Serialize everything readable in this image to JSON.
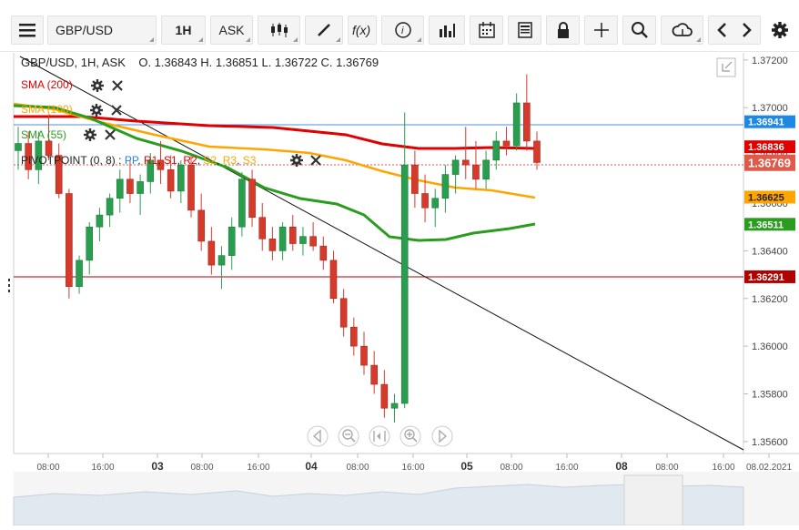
{
  "toolbar": {
    "symbol": "GBP/USD",
    "timeframe": "1H",
    "price_type": "ASK",
    "icons": [
      "menu-icon",
      "candles-icon",
      "draw-icon",
      "fx-icon",
      "info-icon",
      "bars-icon",
      "calendar-icon",
      "document-icon",
      "lock-icon",
      "crosshair-icon",
      "zoom-icon",
      "cloud-icon",
      "chevron-left-icon",
      "chevron-right-icon",
      "gear-icon"
    ]
  },
  "header": {
    "title": "GBP/USD, 1H, ASK",
    "ohlc": "O. 1.36843 H. 1.36851 L. 1.36722 C. 1.36769"
  },
  "indicators": [
    {
      "label": "SMA (200)",
      "color": "#e00000"
    },
    {
      "label": "SMA (100)",
      "color": "#ffa500"
    },
    {
      "label": "SMA (55)",
      "color": "#2a9d1f"
    }
  ],
  "pivot": {
    "label": "PIVOTPOINT (0, 8)",
    "items": [
      {
        "label": "PP",
        "color": "#1e88e5"
      },
      {
        "label": "R1",
        "color": "#e00000"
      },
      {
        "label": "S1",
        "color": "#e00000"
      },
      {
        "label": "R2",
        "color": "#e00000"
      },
      {
        "label": "S2",
        "color": "#ffa500"
      },
      {
        "label": "R3",
        "color": "#ffa500"
      },
      {
        "label": "S3",
        "color": "#ffa500"
      }
    ]
  },
  "y_axis": {
    "ticks": [
      "1.37200",
      "1.37000",
      "1.36800",
      "1.36600",
      "1.36400",
      "1.36200",
      "1.36000",
      "1.35800",
      "1.35600"
    ]
  },
  "price_badges": [
    {
      "value": "1.36941",
      "bg": "#1e88e5"
    },
    {
      "value": "1.36836",
      "bg": "#e00000"
    },
    {
      "value": "1.36769",
      "bg": "#e05a4a"
    },
    {
      "value": "1.36625",
      "bg": "#ffa500"
    },
    {
      "value": "1.36511",
      "bg": "#2a9d1f"
    },
    {
      "value": "1.36291",
      "bg": "#b00000"
    }
  ],
  "x_axis": {
    "labels": [
      "08:00",
      "16:00",
      "03",
      "08:00",
      "16:00",
      "04",
      "08:00",
      "16:00",
      "05",
      "08:00",
      "16:00",
      "08",
      "08:00",
      "16:00",
      "08.02.2021"
    ]
  },
  "nav_controls": [
    "arrow-left-icon",
    "zoom-out-icon",
    "reset-zoom-icon",
    "zoom-in-icon",
    "arrow-right-icon"
  ],
  "chart_data": {
    "type": "candlestick",
    "title": "GBP/USD, 1H, ASK",
    "ylim": [
      1.3555,
      1.3723
    ],
    "candles": [
      [
        1.3682,
        1.3692,
        1.3674,
        1.3685
      ],
      [
        1.3685,
        1.369,
        1.367,
        1.3674
      ],
      [
        1.3674,
        1.369,
        1.3668,
        1.3686
      ],
      [
        1.3686,
        1.3697,
        1.3678,
        1.368
      ],
      [
        1.368,
        1.3685,
        1.3662,
        1.3664
      ],
      [
        1.3664,
        1.3666,
        1.362,
        1.3625
      ],
      [
        1.3625,
        1.3638,
        1.3622,
        1.3636
      ],
      [
        1.3636,
        1.3652,
        1.363,
        1.365
      ],
      [
        1.365,
        1.3658,
        1.3644,
        1.3655
      ],
      [
        1.3655,
        1.3664,
        1.365,
        1.3662
      ],
      [
        1.3662,
        1.3674,
        1.3656,
        1.367
      ],
      [
        1.367,
        1.3678,
        1.366,
        1.3664
      ],
      [
        1.3664,
        1.3672,
        1.3655,
        1.3669
      ],
      [
        1.3669,
        1.3681,
        1.3664,
        1.3678
      ],
      [
        1.3678,
        1.3686,
        1.3668,
        1.3674
      ],
      [
        1.3674,
        1.368,
        1.3662,
        1.3665
      ],
      [
        1.3665,
        1.3678,
        1.366,
        1.3676
      ],
      [
        1.3676,
        1.368,
        1.3654,
        1.3657
      ],
      [
        1.3657,
        1.3664,
        1.364,
        1.3644
      ],
      [
        1.3644,
        1.365,
        1.363,
        1.3634
      ],
      [
        1.3634,
        1.3642,
        1.3624,
        1.3638
      ],
      [
        1.3638,
        1.3654,
        1.3632,
        1.365
      ],
      [
        1.365,
        1.3673,
        1.3646,
        1.367
      ],
      [
        1.367,
        1.3674,
        1.365,
        1.3654
      ],
      [
        1.3654,
        1.366,
        1.364,
        1.3645
      ],
      [
        1.3645,
        1.365,
        1.3636,
        1.364
      ],
      [
        1.364,
        1.3652,
        1.3636,
        1.365
      ],
      [
        1.365,
        1.3655,
        1.364,
        1.3643
      ],
      [
        1.3643,
        1.365,
        1.3638,
        1.3646
      ],
      [
        1.3646,
        1.3652,
        1.364,
        1.3642
      ],
      [
        1.3642,
        1.3646,
        1.3632,
        1.3636
      ],
      [
        1.3636,
        1.364,
        1.3618,
        1.362
      ],
      [
        1.362,
        1.3624,
        1.3604,
        1.3608
      ],
      [
        1.3608,
        1.3612,
        1.3596,
        1.36
      ],
      [
        1.36,
        1.3606,
        1.3588,
        1.3592
      ],
      [
        1.3592,
        1.3598,
        1.358,
        1.3584
      ],
      [
        1.3584,
        1.359,
        1.357,
        1.3574
      ],
      [
        1.3574,
        1.358,
        1.3568,
        1.3576
      ],
      [
        1.3576,
        1.3698,
        1.3574,
        1.3676
      ],
      [
        1.3676,
        1.3682,
        1.3658,
        1.3664
      ],
      [
        1.3664,
        1.3672,
        1.3652,
        1.3658
      ],
      [
        1.3658,
        1.3666,
        1.365,
        1.3662
      ],
      [
        1.3662,
        1.3676,
        1.3656,
        1.3672
      ],
      [
        1.3672,
        1.368,
        1.3664,
        1.3678
      ],
      [
        1.3678,
        1.3692,
        1.367,
        1.3676
      ],
      [
        1.3676,
        1.3686,
        1.3666,
        1.367
      ],
      [
        1.367,
        1.3682,
        1.3666,
        1.3678
      ],
      [
        1.3678,
        1.369,
        1.3674,
        1.3686
      ],
      [
        1.3686,
        1.3692,
        1.368,
        1.3684
      ],
      [
        1.3684,
        1.3706,
        1.3682,
        1.3702
      ],
      [
        1.3702,
        1.3714,
        1.3682,
        1.3686
      ],
      [
        1.3686,
        1.369,
        1.3674,
        1.3677
      ]
    ],
    "sma_levels": {
      "sma200": "1.36836",
      "sma100": "1.36625",
      "sma55": "1.36511"
    }
  }
}
